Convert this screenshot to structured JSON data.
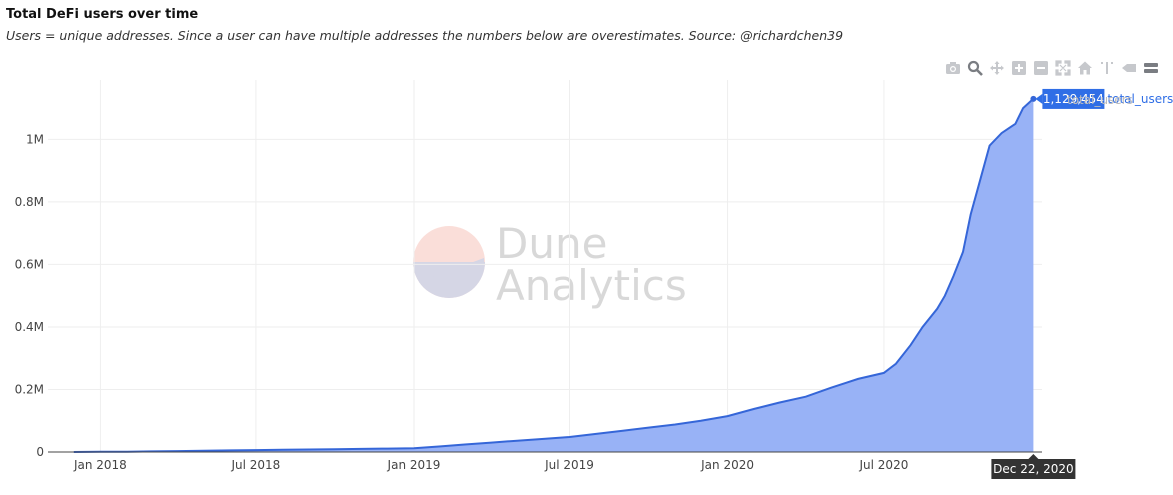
{
  "header": {
    "title": "Total DeFi users over time",
    "subtitle": "Users = unique addresses. Since a user can have multiple addresses the numbers below are overestimates. Source: @richardchen39"
  },
  "modebar": {
    "icons": [
      "camera-icon",
      "zoom-icon",
      "pan-icon",
      "zoom-in-icon",
      "zoom-out-icon",
      "autoscale-icon",
      "home-icon",
      "spike-lines-icon",
      "hover-closest-icon",
      "hover-compare-icon"
    ]
  },
  "watermark": {
    "line1": "Dune",
    "line2": "Analytics"
  },
  "hover": {
    "value_label": "1,129,454",
    "series_label": "total_users",
    "x_label": "Dec 22, 2020"
  },
  "legend": {
    "label": "total_users"
  },
  "colors": {
    "line": "#3566d8",
    "fill": "#92aef5",
    "hover_box": "#2f6ee6",
    "x_hover_box": "#333333"
  },
  "chart_data": {
    "type": "area",
    "title": "Total DeFi users over time",
    "x_tick_labels": [
      "Jan 2018",
      "Jul 2018",
      "Jan 2019",
      "Jul 2019",
      "Jan 2020",
      "Jul 2020"
    ],
    "x_ticks": [
      "2018-01-01",
      "2018-07-01",
      "2019-01-01",
      "2019-07-01",
      "2020-01-01",
      "2020-07-01"
    ],
    "xlim": [
      "2017-11-01",
      "2021-01-01"
    ],
    "y_tick_labels": [
      "0",
      "0.2M",
      "0.4M",
      "0.6M",
      "0.8M",
      "1M"
    ],
    "y_ticks": [
      0,
      200000,
      400000,
      600000,
      800000,
      1000000
    ],
    "ylim": [
      0,
      1190000
    ],
    "grid": true,
    "series": [
      {
        "name": "total_users",
        "x": [
          "2017-12-01",
          "2018-01-01",
          "2018-02-01",
          "2018-03-01",
          "2018-04-01",
          "2018-05-01",
          "2018-06-01",
          "2018-07-01",
          "2018-08-01",
          "2018-09-01",
          "2018-10-01",
          "2018-11-01",
          "2018-12-01",
          "2019-01-01",
          "2019-02-01",
          "2019-03-01",
          "2019-04-01",
          "2019-05-01",
          "2019-06-01",
          "2019-07-01",
          "2019-08-01",
          "2019-09-01",
          "2019-10-01",
          "2019-11-01",
          "2019-12-01",
          "2020-01-01",
          "2020-02-01",
          "2020-03-01",
          "2020-04-01",
          "2020-05-01",
          "2020-06-01",
          "2020-07-01",
          "2020-07-15",
          "2020-08-01",
          "2020-08-15",
          "2020-09-01",
          "2020-09-10",
          "2020-09-20",
          "2020-10-01",
          "2020-10-10",
          "2020-10-20",
          "2020-11-01",
          "2020-11-15",
          "2020-12-01",
          "2020-12-10",
          "2020-12-20",
          "2020-12-22"
        ],
        "y": [
          0,
          500,
          1000,
          2000,
          3000,
          4000,
          5000,
          6000,
          7000,
          8000,
          9000,
          10000,
          11000,
          12000,
          18000,
          24000,
          30000,
          36000,
          42000,
          48000,
          58000,
          68000,
          78000,
          88000,
          100000,
          115000,
          138000,
          158000,
          177000,
          206000,
          234000,
          253000,
          282000,
          342000,
          400000,
          458000,
          500000,
          563000,
          640000,
          760000,
          860000,
          980000,
          1020000,
          1050000,
          1100000,
          1125000,
          1129454
        ]
      }
    ]
  }
}
